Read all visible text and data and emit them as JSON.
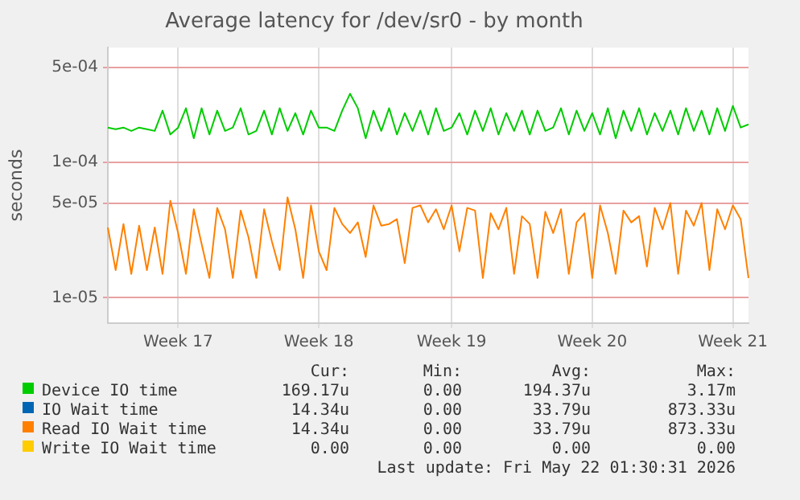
{
  "chart_data": {
    "type": "line",
    "title": "Average latency for /dev/sr0 - by month",
    "ylabel": "seconds",
    "log": "y",
    "grid": true,
    "legend": "bottom",
    "marker": "none",
    "line_style": "solid",
    "ylim": [
      6.5e-06,
      0.0007
    ],
    "yticks": [
      {
        "value": 1e-05,
        "label": "1e-05"
      },
      {
        "value": 5e-05,
        "label": "5e-05"
      },
      {
        "value": 0.0001,
        "label": "1e-04"
      },
      {
        "value": 0.0005,
        "label": "5e-04"
      }
    ],
    "categories": [
      null,
      null,
      null,
      null,
      null,
      null,
      null,
      null,
      null,
      "Week 17",
      null,
      null,
      null,
      null,
      null,
      null,
      null,
      null,
      null,
      null,
      null,
      null,
      null,
      null,
      null,
      null,
      null,
      "Week 18",
      null,
      null,
      null,
      null,
      null,
      null,
      null,
      null,
      null,
      null,
      null,
      null,
      null,
      null,
      null,
      null,
      "Week 19",
      null,
      null,
      null,
      null,
      null,
      null,
      null,
      null,
      null,
      null,
      null,
      null,
      null,
      null,
      null,
      null,
      null,
      "Week 20",
      null,
      null,
      null,
      null,
      null,
      null,
      null,
      null,
      null,
      null,
      null,
      null,
      null,
      null,
      null,
      null,
      null,
      "Week 21",
      null,
      null
    ],
    "series": [
      {
        "name": "Device IO time",
        "color": "#00cc00",
        "values": [
          0.00018,
          0.000175,
          0.00018,
          0.00017,
          0.00018,
          0.000175,
          0.00017,
          0.00024,
          0.00016,
          0.00018,
          0.00025,
          0.00015,
          0.00025,
          0.00016,
          0.00024,
          0.00017,
          0.00018,
          0.00025,
          0.00016,
          0.00017,
          0.00024,
          0.00016,
          0.00025,
          0.00017,
          0.00023,
          0.00016,
          0.00024,
          0.00018,
          0.00018,
          0.00017,
          0.00024,
          0.00032,
          0.00025,
          0.00015,
          0.00024,
          0.00017,
          0.00025,
          0.00016,
          0.00023,
          0.00017,
          0.00024,
          0.00016,
          0.00025,
          0.00017,
          0.00018,
          0.00023,
          0.00016,
          0.00024,
          0.00017,
          0.00025,
          0.00016,
          0.00023,
          0.00017,
          0.00024,
          0.00016,
          0.00024,
          0.00017,
          0.00018,
          0.00025,
          0.00016,
          0.00024,
          0.00017,
          0.00023,
          0.00016,
          0.00025,
          0.00015,
          0.00024,
          0.00017,
          0.00025,
          0.00016,
          0.00023,
          0.00017,
          0.00024,
          0.00016,
          0.00025,
          0.00017,
          0.00024,
          0.00016,
          0.00025,
          0.00017,
          0.00026,
          0.00018,
          0.00019
        ]
      },
      {
        "name": "IO Wait time",
        "color": "#0066b3",
        "values": [
          null,
          null,
          null,
          null,
          null,
          null,
          null,
          null,
          null,
          null,
          null,
          null,
          null,
          null,
          null,
          null,
          null,
          null,
          null,
          null,
          null,
          null,
          null,
          null,
          null,
          null,
          null,
          null,
          null,
          null,
          null,
          null,
          null,
          null,
          null,
          null,
          null,
          null,
          null,
          null,
          null,
          null,
          null,
          null,
          null,
          null,
          null,
          null,
          null,
          null,
          null,
          null,
          null,
          null,
          null,
          null,
          null,
          null,
          null,
          null,
          null,
          null,
          null,
          null,
          null,
          null,
          null,
          null,
          null,
          null,
          null,
          null,
          null,
          null,
          null,
          null,
          null,
          null,
          null,
          null,
          null,
          null,
          null
        ]
      },
      {
        "name": "Read IO Wait time",
        "color": "#ff8000",
        "values": [
          3.3e-05,
          1.6e-05,
          3.5e-05,
          1.5e-05,
          3.4e-05,
          1.6e-05,
          3.3e-05,
          1.5e-05,
          5.2e-05,
          3e-05,
          1.5e-05,
          4.5e-05,
          2.5e-05,
          1.4e-05,
          4.6e-05,
          3.2e-05,
          1.4e-05,
          4.4e-05,
          2.8e-05,
          1.4e-05,
          4.5e-05,
          2.6e-05,
          1.6e-05,
          5.5e-05,
          3.2e-05,
          1.4e-05,
          4.8e-05,
          2.2e-05,
          1.6e-05,
          4.6e-05,
          3.5e-05,
          3e-05,
          3.6e-05,
          2e-05,
          4.8e-05,
          3.4e-05,
          3.5e-05,
          3.8e-05,
          1.8e-05,
          4.6e-05,
          4.8e-05,
          3.6e-05,
          4.5e-05,
          3.2e-05,
          4.8e-05,
          2.2e-05,
          4.6e-05,
          4.4e-05,
          1.4e-05,
          4.2e-05,
          3.2e-05,
          4.6e-05,
          1.5e-05,
          4e-05,
          3.5e-05,
          1.4e-05,
          4.3e-05,
          3e-05,
          4.5e-05,
          1.5e-05,
          3.6e-05,
          4.2e-05,
          1.4e-05,
          4.8e-05,
          3e-05,
          1.5e-05,
          4.4e-05,
          3.6e-05,
          4e-05,
          1.7e-05,
          4.6e-05,
          3.2e-05,
          5e-05,
          1.5e-05,
          4.4e-05,
          3.4e-05,
          5e-05,
          1.6e-05,
          4.5e-05,
          3.2e-05,
          4.8e-05,
          3.8e-05,
          1.4e-05
        ]
      },
      {
        "name": "Write IO Wait time",
        "color": "#ffcc00",
        "values": [
          null,
          null,
          null,
          null,
          null,
          null,
          null,
          null,
          null,
          null,
          null,
          null,
          null,
          null,
          null,
          null,
          null,
          null,
          null,
          null,
          null,
          null,
          null,
          null,
          null,
          null,
          null,
          null,
          null,
          null,
          null,
          null,
          null,
          null,
          null,
          null,
          null,
          null,
          null,
          null,
          null,
          null,
          null,
          null,
          null,
          null,
          null,
          null,
          null,
          null,
          null,
          null,
          null,
          null,
          null,
          null,
          null,
          null,
          null,
          null,
          null,
          null,
          null,
          null,
          null,
          null,
          null,
          null,
          null,
          null,
          null,
          null,
          null,
          null,
          null,
          null,
          null,
          null,
          null,
          null,
          null,
          null,
          null
        ]
      }
    ],
    "annotations": [
      "Cur:",
      "Min:",
      "Avg:",
      "Max:",
      "169.17u",
      "0.00",
      "194.37u",
      "3.17m",
      "14.34u",
      "0.00",
      "33.79u",
      "873.33u",
      "14.34u",
      "0.00",
      "33.79u",
      "873.33u",
      "0.00",
      "0.00",
      "0.00",
      "0.00",
      "Last update: Fri May 22 01:30:31 2026"
    ]
  }
}
